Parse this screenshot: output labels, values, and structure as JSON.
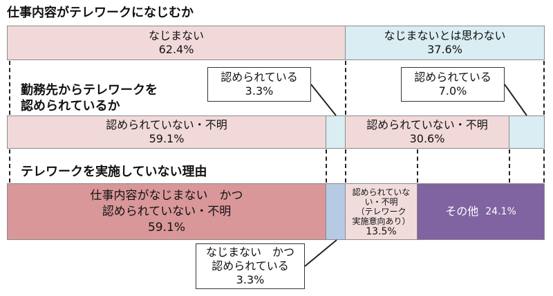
{
  "section1": {
    "title": "仕事内容がテレワークになじむか",
    "bar_left": {
      "label": "なじまない",
      "value": "62.4%"
    },
    "bar_right": {
      "label": "なじまないとは思わない",
      "value": "37.6%"
    }
  },
  "section2": {
    "title_line1": "勤務先からテレワークを",
    "title_line2": "認められているか",
    "callout_left": {
      "label": "認められている",
      "value": "3.3%"
    },
    "callout_right": {
      "label": "認められている",
      "value": "7.0%"
    },
    "bar_left": {
      "label": "認められていない・不明",
      "value": "59.1%"
    },
    "bar_right": {
      "label": "認められていない・不明",
      "value": "30.6%"
    }
  },
  "section3": {
    "title": "テレワークを実施していない理由",
    "seg_main": {
      "line1": "仕事内容がなじまない　かつ",
      "line2": "認められていない・不明",
      "value": "59.1%"
    },
    "seg_small": {
      "line1": "認められていな",
      "line2": "い・不明",
      "line3": "（テレワーク",
      "line4": "実施意向あり）",
      "value": "13.5%"
    },
    "seg_other": {
      "label": "その他",
      "value": "24.1%"
    },
    "callout_bottom": {
      "line1": "なじまない　かつ",
      "line2": "認められている",
      "value": "3.3%"
    }
  },
  "colors": {
    "pink": "#f1d9da",
    "light_blue": "#d9edf3",
    "dark_red": "#d9979a",
    "steel_blue": "#b6cbe3",
    "purple": "#8064a2"
  }
}
